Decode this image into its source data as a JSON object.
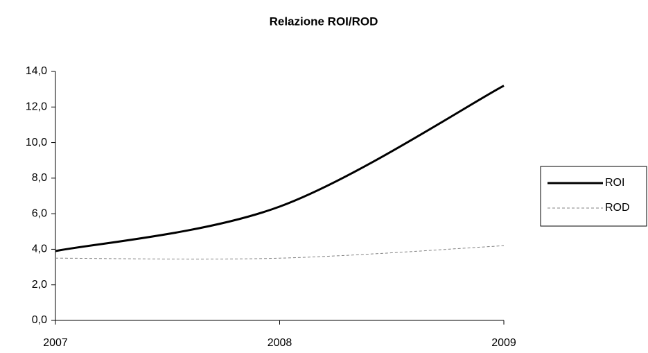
{
  "chart_data": {
    "type": "line",
    "title": "Relazione ROI/ROD",
    "categories": [
      "2007",
      "2008",
      "2009"
    ],
    "series": [
      {
        "name": "ROI",
        "color": "#000000",
        "dash": false,
        "values": [
          3.9,
          6.4,
          13.2
        ]
      },
      {
        "name": "ROD",
        "color": "#808080",
        "dash": true,
        "values": [
          3.5,
          3.5,
          4.2
        ]
      }
    ],
    "ylim": [
      0,
      14
    ],
    "yticks": [
      {
        "value": 0,
        "label": "0,0"
      },
      {
        "value": 2,
        "label": "2,0"
      },
      {
        "value": 4,
        "label": "4,0"
      },
      {
        "value": 6,
        "label": "6,0"
      },
      {
        "value": 8,
        "label": "8,0"
      },
      {
        "value": 10,
        "label": "10,0"
      },
      {
        "value": 12,
        "label": "12,0"
      },
      {
        "value": 14,
        "label": "14,0"
      }
    ],
    "legend": "right"
  }
}
